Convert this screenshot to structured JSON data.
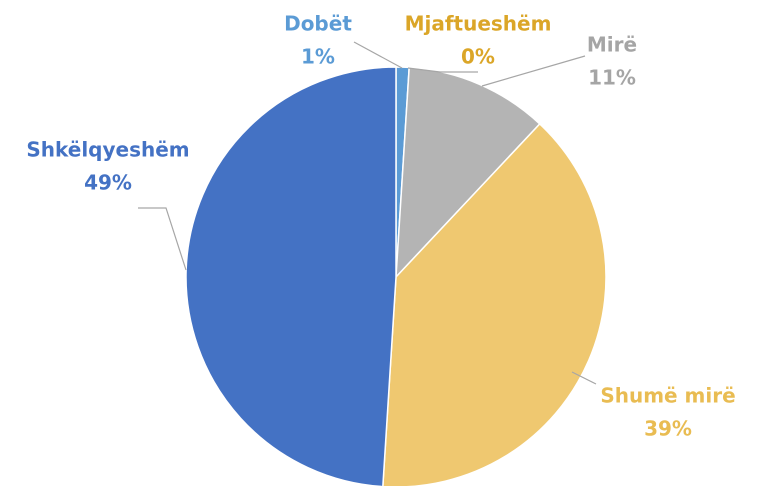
{
  "chart_data": {
    "type": "pie",
    "categories": [
      "Dobët",
      "Mjaftueshëm",
      "Mirë",
      "Shumë mirë",
      "Shkëlqyeshëm"
    ],
    "values": [
      1,
      0,
      11,
      39,
      49
    ],
    "value_labels": [
      "1%",
      "0%",
      "11%",
      "39%",
      "49%"
    ],
    "colors": [
      "#5b9bd5",
      "#e3a827",
      "#b4b4b4",
      "#efc870",
      "#4472c4"
    ],
    "label_colors": [
      "#5b9bd5",
      "#dba628",
      "#a5a5a5",
      "#e9bc52",
      "#4472c4"
    ]
  }
}
